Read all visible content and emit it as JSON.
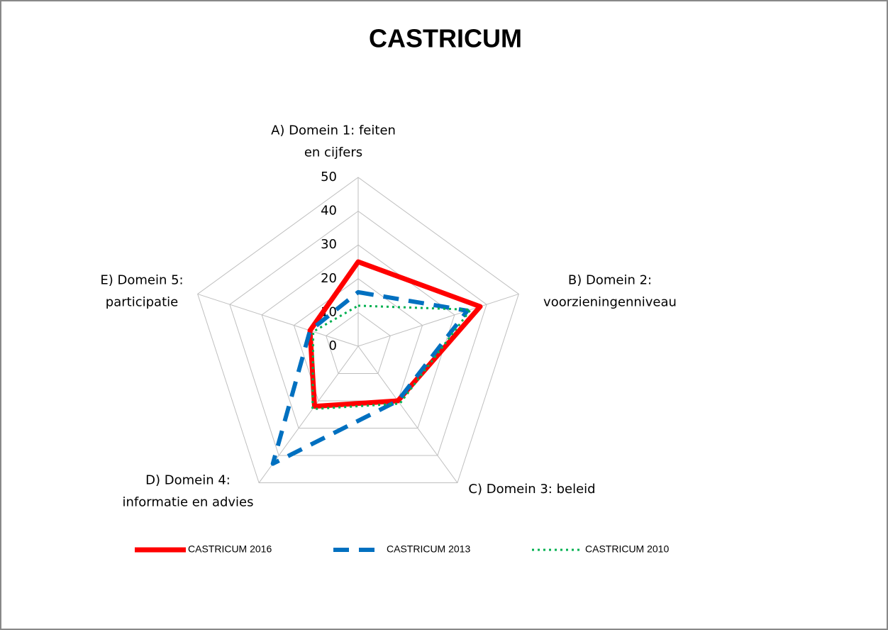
{
  "chart_data": {
    "type": "radar",
    "title": "CASTRICUM",
    "categories": [
      "A) Domein 1: feiten en cijfers",
      "B) Domein 2: voorzieningenniveau",
      "C) Domein 3: beleid",
      "D) Domein 4: informatie en advies",
      "E) Domein 5: participatie"
    ],
    "series": [
      {
        "name": "CASTRICUM 2016",
        "color": "#ff0000",
        "style": "solid",
        "values": [
          25,
          38,
          20,
          22,
          15
        ]
      },
      {
        "name": "CASTRICUM 2013",
        "color": "#0070c0",
        "style": "dashed",
        "values": [
          16,
          34,
          20,
          43,
          15
        ]
      },
      {
        "name": "CASTRICUM 2010",
        "color": "#00b050",
        "style": "dotted",
        "values": [
          12,
          35,
          21,
          23,
          14
        ]
      }
    ],
    "ylim": [
      0,
      50
    ],
    "yticks": [
      0,
      10,
      20,
      30,
      40,
      50
    ],
    "grid": true,
    "legend": "bottom"
  }
}
